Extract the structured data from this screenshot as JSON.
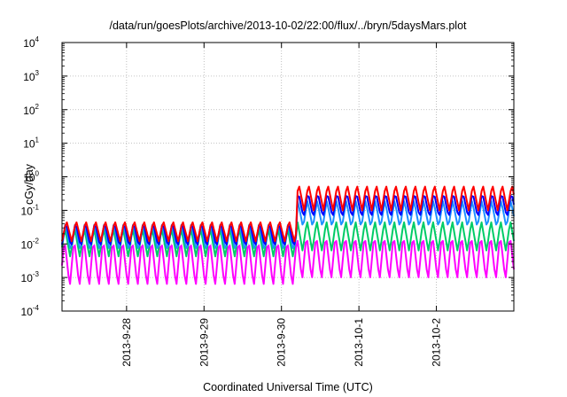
{
  "chart_data": {
    "type": "line",
    "title": "/data/run/goesPlots/archive/2013-10-02/22:00/flux/../bryn/5daysMars.plot",
    "xlabel": "Coordinated Universal Time (UTC)",
    "ylabel": "cGy/day",
    "yscale": "log",
    "ylim": [
      0.0001,
      10000
    ],
    "y_ticks": [
      {
        "base": "10",
        "exp": "-4",
        "value": 0.0001
      },
      {
        "base": "10",
        "exp": "-3",
        "value": 0.001
      },
      {
        "base": "10",
        "exp": "-2",
        "value": 0.01
      },
      {
        "base": "10",
        "exp": "-1",
        "value": 0.1
      },
      {
        "base": "10",
        "exp": "0",
        "value": 1
      },
      {
        "base": "10",
        "exp": "1",
        "value": 10
      },
      {
        "base": "10",
        "exp": "2",
        "value": 100
      },
      {
        "base": "10",
        "exp": "3",
        "value": 1000
      },
      {
        "base": "10",
        "exp": "4",
        "value": 10000
      }
    ],
    "xlim": [
      "2013-09-27T04:00",
      "2013-10-03T00:00"
    ],
    "x_ticks": [
      {
        "label": "2013-9-28",
        "value": "2013-09-28T00:00"
      },
      {
        "label": "2013-9-29",
        "value": "2013-09-29T00:00"
      },
      {
        "label": "2013-9-30",
        "value": "2013-09-30T00:00"
      },
      {
        "label": "2013-10-1",
        "value": "2013-10-01T00:00"
      },
      {
        "label": "2013-10-2",
        "value": "2013-10-02T00:00"
      }
    ],
    "grid": true,
    "oscillation_period_hours": 3,
    "series": [
      {
        "color": "#ff0000",
        "peak_before": 0.05,
        "trough_before": 0.012,
        "peak_after": 0.6,
        "trough_after": 0.1
      },
      {
        "color": "#0000ff",
        "peak_before": 0.045,
        "trough_before": 0.008,
        "peak_after": 0.35,
        "trough_after": 0.06
      },
      {
        "color": "#1e90ff",
        "peak_before": 0.04,
        "trough_before": 0.006,
        "peak_after": 0.2,
        "trough_after": 0.03
      },
      {
        "color": "#00cc66",
        "peak_before": 0.03,
        "trough_before": 0.004,
        "peak_after": 0.05,
        "trough_after": 0.006
      },
      {
        "color": "#ff00ff",
        "peak_before": 0.015,
        "trough_before": 0.0005,
        "peak_after": 0.02,
        "trough_after": 0.0008
      }
    ]
  }
}
